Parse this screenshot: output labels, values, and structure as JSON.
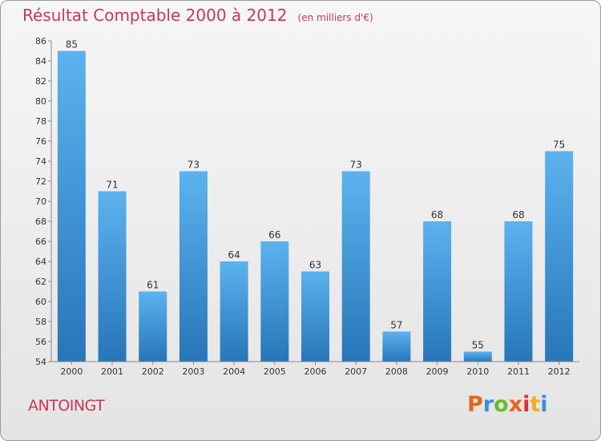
{
  "title": "Résultat Comptable 2000 à 2012",
  "subtitle": "(en milliers d'€)",
  "commune": "ANTOINGT",
  "brand": {
    "letters": [
      "P",
      "r",
      "o",
      "x",
      "i",
      "t",
      "i"
    ],
    "colors": [
      "#e8641e",
      "#3a8ed8",
      "#6abb2f",
      "#e8641e",
      "#d8323a",
      "#f0b020",
      "#3a8ed8"
    ]
  },
  "chart_data": {
    "type": "bar",
    "categories": [
      "2000",
      "2001",
      "2002",
      "2003",
      "2004",
      "2005",
      "2006",
      "2007",
      "2008",
      "2009",
      "2010",
      "2011",
      "2012"
    ],
    "values": [
      85,
      71,
      61,
      73,
      64,
      66,
      63,
      73,
      57,
      68,
      55,
      68,
      75
    ],
    "ylim": [
      54,
      86
    ],
    "yticks": [
      54,
      56,
      58,
      60,
      62,
      64,
      66,
      68,
      70,
      72,
      74,
      76,
      78,
      80,
      82,
      84,
      86
    ],
    "grid": false,
    "bar_color": "#3a93d8"
  }
}
